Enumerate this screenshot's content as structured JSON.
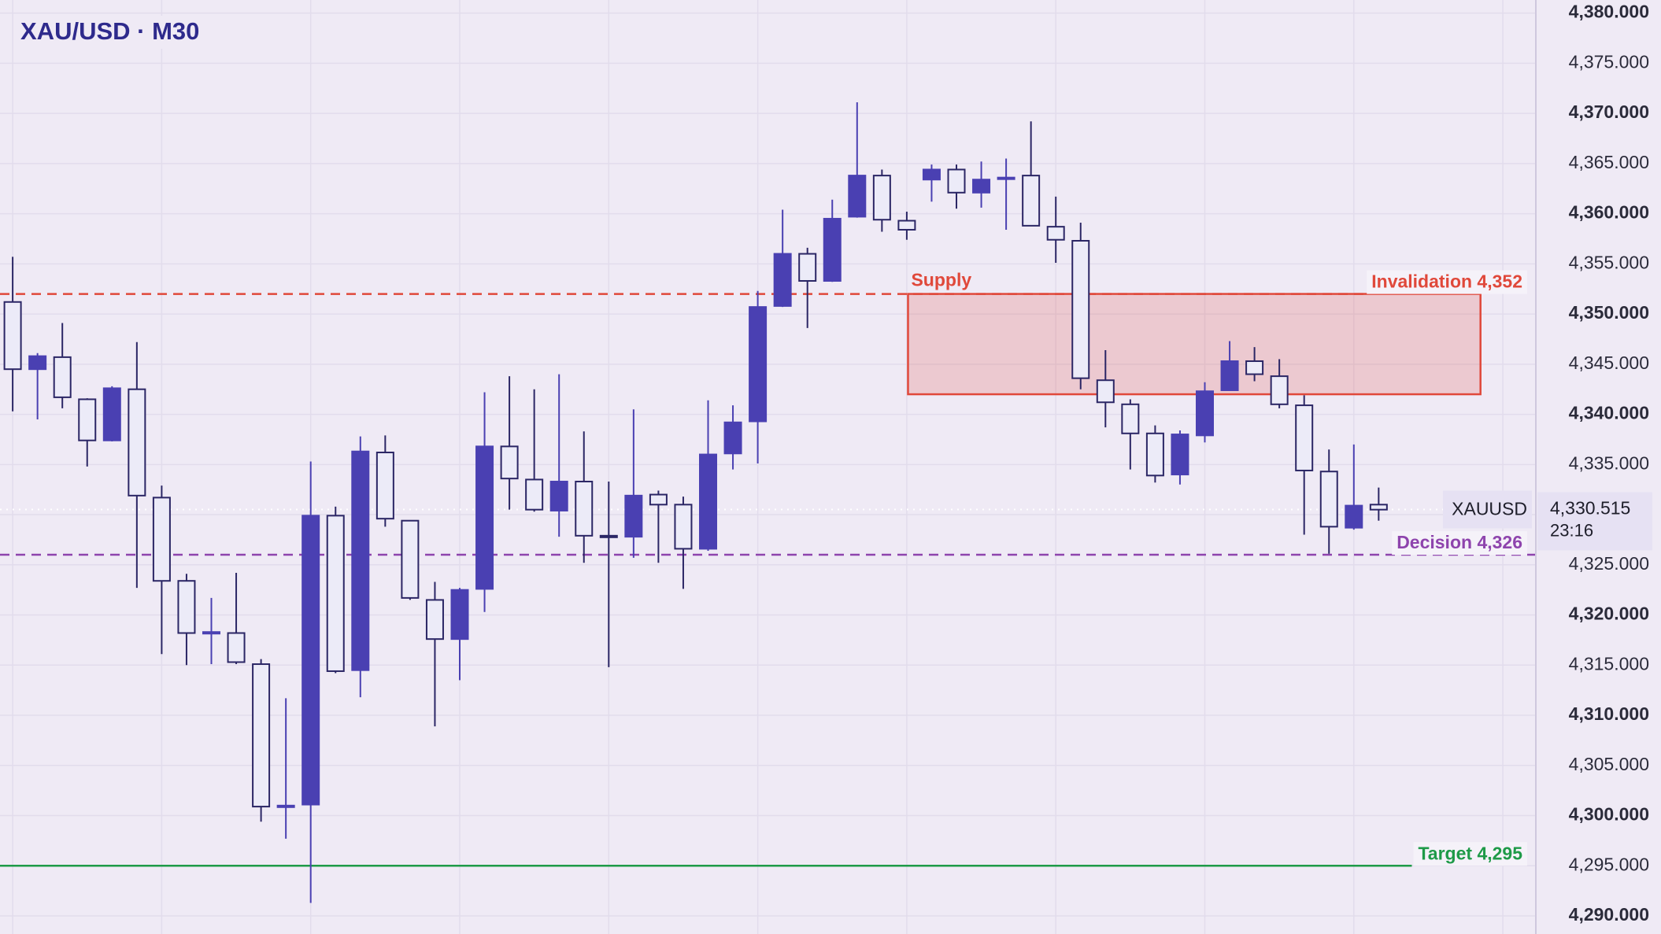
{
  "chart_data": {
    "type": "candlestick",
    "title": "XAU/USD · M30",
    "up_color": "#4a40b2",
    "down_color": "#ecebf8",
    "outline_color": "#2b2665",
    "grid": true,
    "open": [
      4351.2,
      4344.5,
      4345.7,
      4341.5,
      4337.4,
      4342.5,
      4331.7,
      4323.4,
      4318.2,
      4318.2,
      4315.1,
      4300.9,
      4301.1,
      4329.9,
      4314.5,
      4336.2,
      4329.4,
      4321.5,
      4317.6,
      4322.6,
      4336.8,
      4333.5,
      4330.4,
      4333.3,
      4327.9,
      4327.8,
      4332.0,
      4331.0,
      4326.6,
      4336.1,
      4339.3,
      4350.8,
      4356.0,
      4353.3,
      4359.7,
      4363.8,
      4359.3,
      4363.4,
      4364.4,
      4362.1,
      4363.5,
      4363.8,
      4358.7,
      4357.3,
      4343.4,
      4341.0,
      4338.1,
      4334.0,
      4337.9,
      4342.4,
      4345.3,
      4343.8,
      4340.9,
      4334.3,
      4328.7,
      4331.0
    ],
    "high": [
      4355.7,
      4346.1,
      4349.1,
      4341.6,
      4342.8,
      4347.2,
      4332.9,
      4324.1,
      4321.7,
      4324.2,
      4315.6,
      4311.7,
      4335.3,
      4330.8,
      4337.8,
      4337.9,
      4329.4,
      4323.3,
      4322.7,
      4342.2,
      4343.8,
      4342.5,
      4344.0,
      4338.3,
      4333.3,
      4340.5,
      4332.4,
      4331.8,
      4341.4,
      4340.9,
      4352.3,
      4360.4,
      4356.6,
      4361.4,
      4371.1,
      4364.4,
      4360.2,
      4364.9,
      4364.9,
      4365.2,
      4365.5,
      4369.2,
      4361.7,
      4359.1,
      4346.4,
      4341.5,
      4338.9,
      4338.4,
      4343.2,
      4347.3,
      4346.7,
      4345.5,
      4341.9,
      4336.5,
      4337.0,
      4332.7
    ],
    "low": [
      4340.3,
      4339.5,
      4340.6,
      4334.8,
      4337.3,
      4322.7,
      4316.1,
      4315.0,
      4315.1,
      4315.1,
      4299.4,
      4297.7,
      4291.3,
      4314.2,
      4311.8,
      4328.8,
      4321.5,
      4308.9,
      4313.5,
      4320.3,
      4330.5,
      4330.3,
      4327.8,
      4325.2,
      4314.8,
      4325.7,
      4325.2,
      4322.6,
      4326.4,
      4334.5,
      4335.1,
      4350.7,
      4348.6,
      4353.2,
      4359.6,
      4358.2,
      4357.4,
      4361.2,
      4360.5,
      4360.6,
      4358.4,
      4358.8,
      4355.1,
      4342.5,
      4338.7,
      4334.5,
      4333.2,
      4333.0,
      4337.2,
      4342.4,
      4343.3,
      4340.6,
      4328.0,
      4326.1,
      4328.5,
      4329.4
    ],
    "close": [
      4344.5,
      4345.8,
      4341.7,
      4337.4,
      4342.6,
      4331.9,
      4323.4,
      4318.2,
      4318.3,
      4315.3,
      4300.9,
      4301.0,
      4329.9,
      4314.4,
      4336.3,
      4329.6,
      4321.7,
      4317.6,
      4322.5,
      4336.8,
      4333.6,
      4330.5,
      4333.3,
      4327.9,
      4327.8,
      4331.9,
      4331.0,
      4326.6,
      4336.0,
      4339.2,
      4350.7,
      4356.0,
      4353.3,
      4359.5,
      4363.8,
      4359.4,
      4358.4,
      4364.4,
      4362.1,
      4363.4,
      4363.6,
      4358.8,
      4357.4,
      4343.6,
      4341.2,
      4338.1,
      4333.9,
      4338.0,
      4342.3,
      4345.3,
      4344.0,
      4341.0,
      4334.4,
      4328.8,
      4330.9,
      4330.5
    ],
    "ylim": [
      4288.2,
      4381.3
    ],
    "yticks": [
      {
        "value": 4290,
        "label": "4,290.000"
      },
      {
        "value": 4295,
        "label": "4,295.000"
      },
      {
        "value": 4300,
        "label": "4,300.000"
      },
      {
        "value": 4305,
        "label": "4,305.000"
      },
      {
        "value": 4310,
        "label": "4,310.000"
      },
      {
        "value": 4315,
        "label": "4,315.000"
      },
      {
        "value": 4320,
        "label": "4,320.000"
      },
      {
        "value": 4325,
        "label": "4,325.000"
      },
      {
        "value": 4330,
        "label": "4,330.000"
      },
      {
        "value": 4335,
        "label": "4,335.000"
      },
      {
        "value": 4340,
        "label": "4,340.000"
      },
      {
        "value": 4345,
        "label": "4,345.000"
      },
      {
        "value": 4350,
        "label": "4,350.000"
      },
      {
        "value": 4355,
        "label": "4,355.000"
      },
      {
        "value": 4360,
        "label": "4,360.000"
      },
      {
        "value": 4365,
        "label": "4,365.000"
      },
      {
        "value": 4370,
        "label": "4,370.000"
      },
      {
        "value": 4375,
        "label": "4,375.000"
      },
      {
        "value": 4380,
        "label": "4,380.000"
      }
    ],
    "levels": [
      {
        "label": "Invalidation 4,352",
        "value": 4352,
        "color": "#e0483a",
        "style": "dashed"
      },
      {
        "label": "Decision 4,326",
        "value": 4326,
        "color": "#8e44ad",
        "style": "dashed"
      },
      {
        "label": "Target 4,295",
        "value": 4295,
        "color": "#1e9a48",
        "style": "solid"
      }
    ],
    "zone": {
      "label": "Supply",
      "top": 4352,
      "bottom": 4342,
      "color": "#e0483a"
    },
    "symbol": "XAUUSD",
    "last_price": {
      "value": 4330.515,
      "label": "4,330.515"
    },
    "countdown": "23:16"
  }
}
